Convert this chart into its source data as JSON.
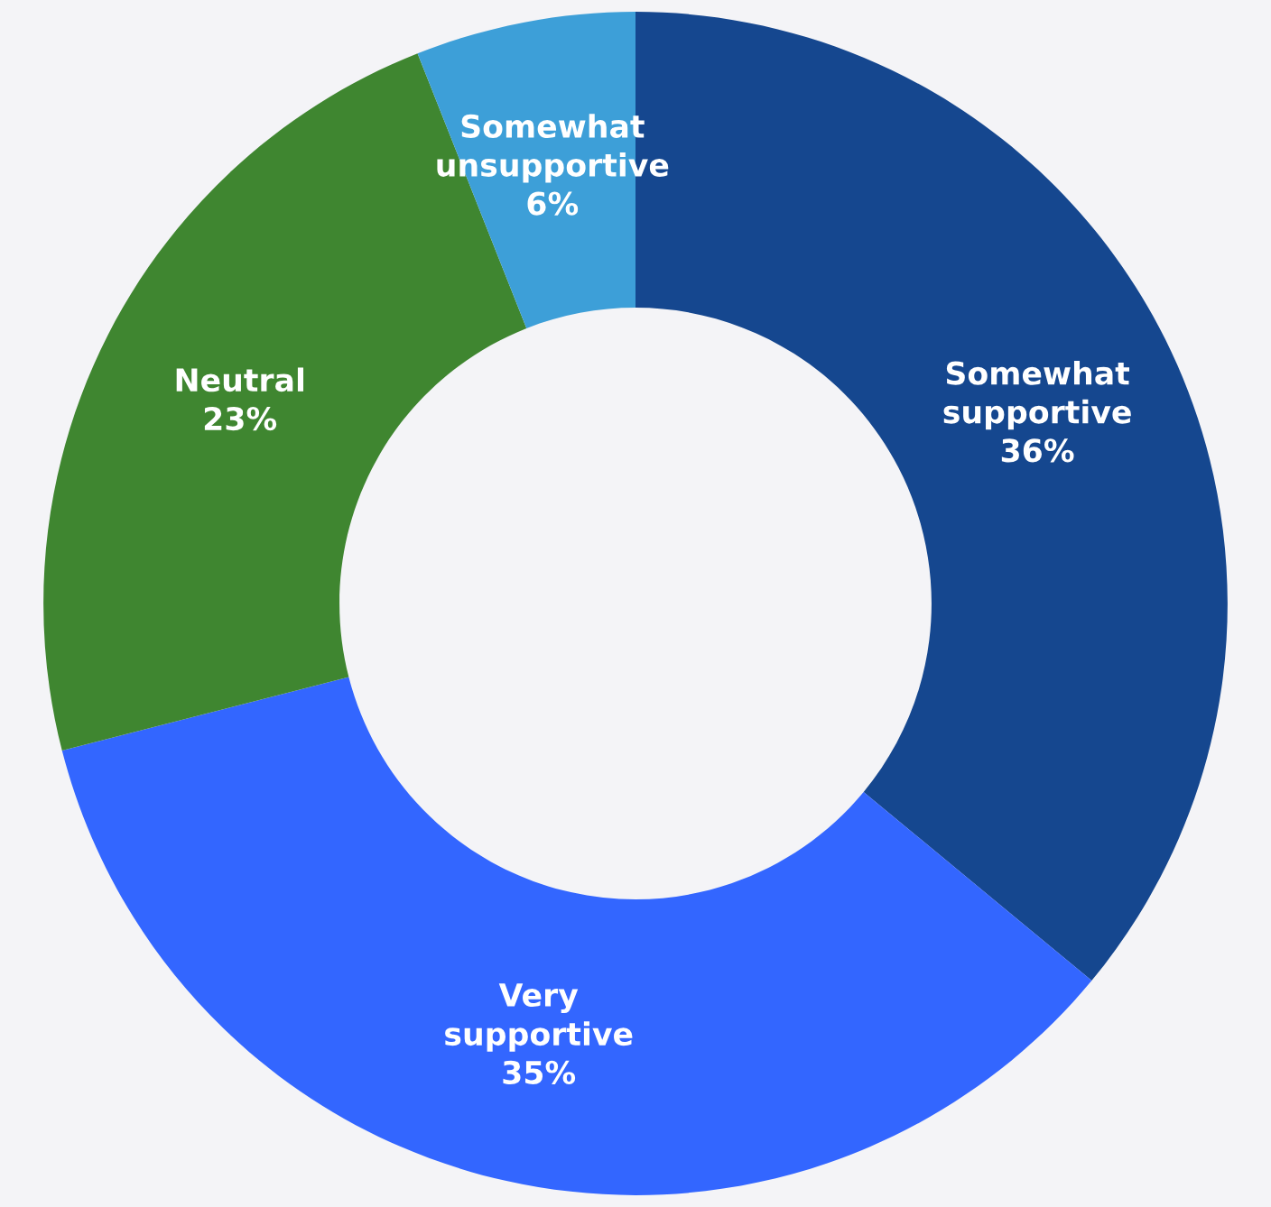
{
  "chart_data": {
    "type": "donut",
    "categories": [
      "Somewhat supportive",
      "Very supportive",
      "Neutral",
      "Somewhat unsupportive"
    ],
    "values": [
      36,
      35,
      23,
      6
    ],
    "colors": [
      "#15478f",
      "#3366ff",
      "#3f8630",
      "#3d9fd8"
    ],
    "value_labels": [
      "36%",
      "35%",
      "23%",
      "6%"
    ]
  }
}
